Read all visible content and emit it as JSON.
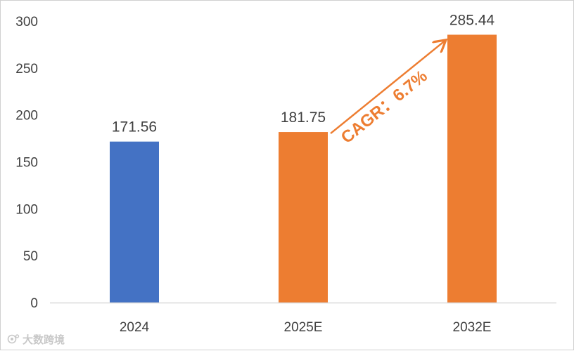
{
  "chart_data": {
    "type": "bar",
    "categories": [
      "2024",
      "2025E",
      "2032E"
    ],
    "values": [
      171.56,
      181.75,
      285.44
    ],
    "value_labels": [
      "171.56",
      "181.75",
      "285.44"
    ],
    "bar_colors": [
      "#4472c4",
      "#ed7d31",
      "#ed7d31"
    ],
    "ylim": [
      0,
      300
    ],
    "yticks": [
      0,
      50,
      100,
      150,
      200,
      250,
      300
    ],
    "grid": false,
    "annotation": {
      "text": "CAGR：6.7%",
      "from_category": "2025E",
      "to_category": "2032E",
      "color": "#ed7d31"
    },
    "title": "",
    "xlabel": "",
    "ylabel": ""
  },
  "watermark": {
    "text": "大数跨境",
    "icon": "camera-lens-icon"
  }
}
